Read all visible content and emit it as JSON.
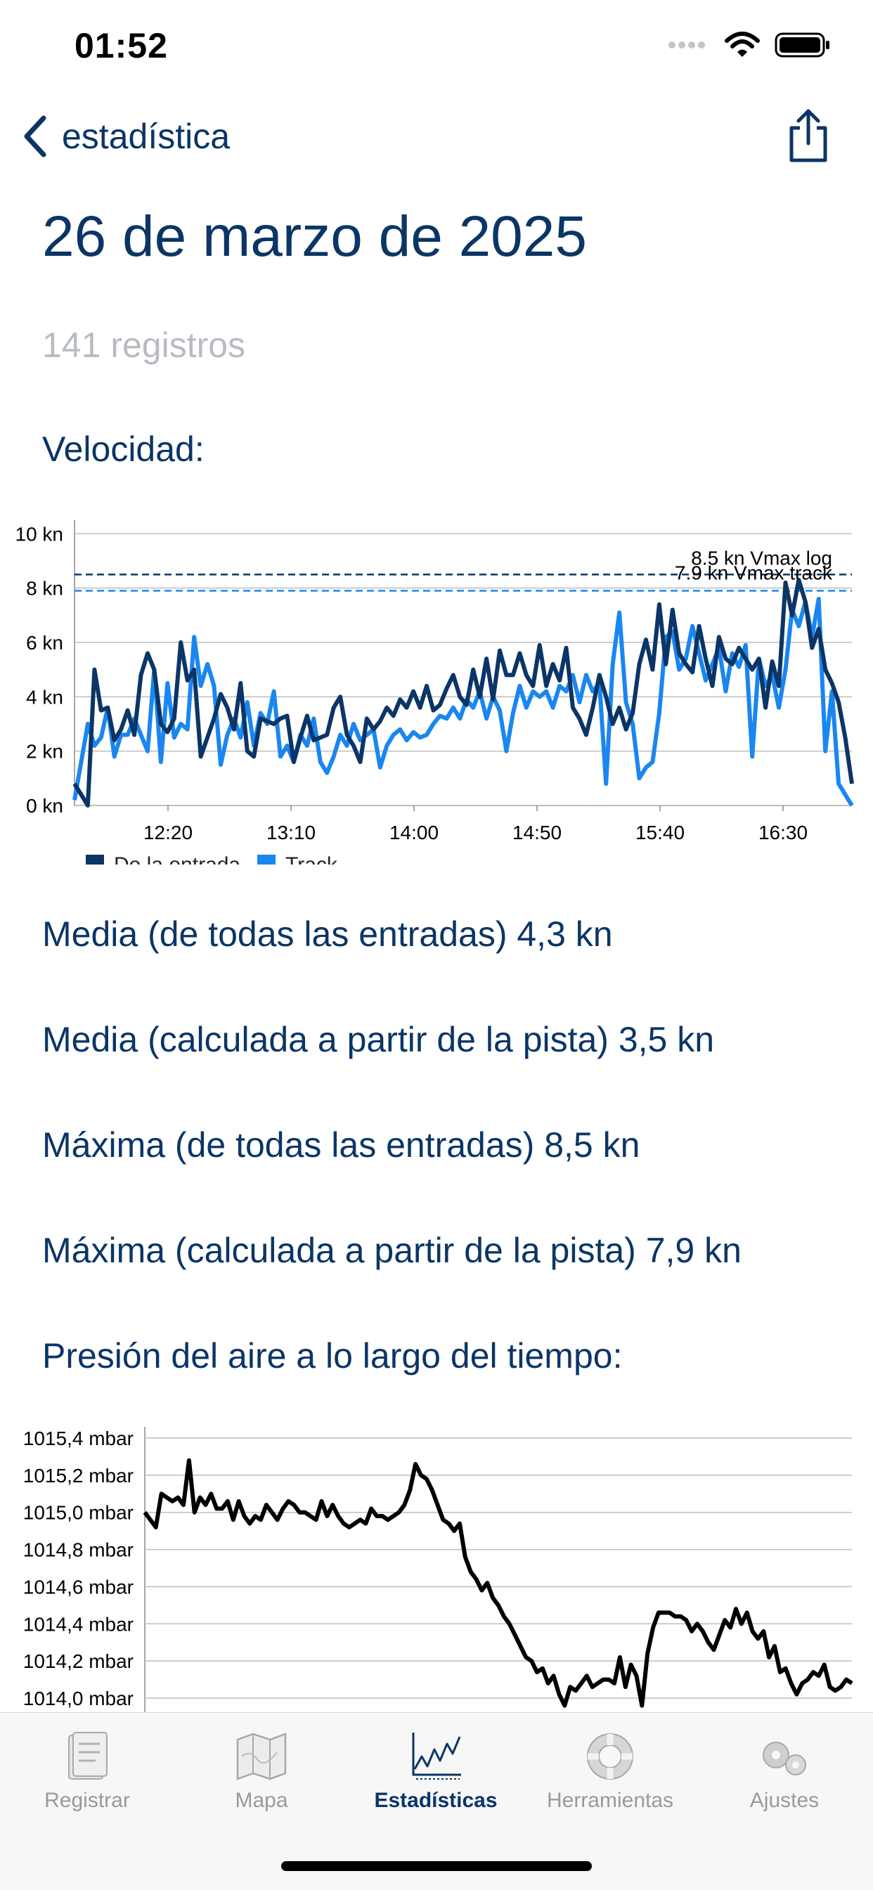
{
  "status_bar": {
    "time": "01:52"
  },
  "nav": {
    "back_label": "estadística"
  },
  "header": {
    "title": "26 de marzo de 2025",
    "record_count": "141 registros"
  },
  "speed_section": {
    "label": "Velocidad:"
  },
  "stats": [
    "Media (de todas las entradas) 4,3 kn",
    "Media (calculada a partir de la pista) 3,5 kn",
    "Máxima (de todas las entradas) 8,5 kn",
    "Máxima (calculada a partir de la pista) 7,9 kn"
  ],
  "pressure_section": {
    "label": "Presión del aire a lo largo del tiempo:"
  },
  "tabbar": {
    "items": [
      {
        "label": "Registrar",
        "icon": "logbook-icon"
      },
      {
        "label": "Mapa",
        "icon": "map-icon"
      },
      {
        "label": "Estadísticas",
        "icon": "statistics-icon",
        "active": true
      },
      {
        "label": "Herramientas",
        "icon": "lifebuoy-icon"
      },
      {
        "label": "Ajustes",
        "icon": "gears-icon"
      }
    ]
  },
  "colors": {
    "primary": "#0b3566",
    "log_series": "#0b3566",
    "track_series": "#1a86f0",
    "inactive_tab": "#9a9a9a"
  },
  "chart_data": [
    {
      "type": "line",
      "title": "",
      "xlabel": "",
      "ylabel": "",
      "x_ticks": [
        "12:20",
        "13:10",
        "14:00",
        "14:50",
        "15:40",
        "16:30"
      ],
      "x_range": [
        "11:42",
        "16:58"
      ],
      "y_ticks": [
        "0 kn",
        "2 kn",
        "4 kn",
        "6 kn",
        "8 kn",
        "10 kn"
      ],
      "ylim": [
        0,
        10.5
      ],
      "grid": true,
      "legend": "bottom-left",
      "reference_lines": [
        {
          "value": 8.5,
          "label": "8,5 kn Vmax log",
          "display_label": "8.5 kn Vmax log"
        },
        {
          "value": 7.9,
          "label": "7,9 kn Vmax track",
          "display_label": "7.9 kn Vmax track"
        }
      ],
      "series": [
        {
          "name": "De la entrada",
          "color": "#0b3566",
          "values": [
            0.8,
            0.4,
            0,
            5,
            3.5,
            3.6,
            2.4,
            2.8,
            3.5,
            2.6,
            4.8,
            5.6,
            5,
            3,
            2.7,
            3.2,
            6,
            4.6,
            5,
            1.8,
            2.5,
            3.2,
            4.1,
            3.6,
            2.8,
            4.5,
            2,
            1.8,
            3.2,
            3.1,
            3,
            3.2,
            3.3,
            1.6,
            2.5,
            3.3,
            2.4,
            2.5,
            2.6,
            3.6,
            4,
            2.6,
            2.2,
            1.6,
            3.2,
            2.8,
            3.1,
            3.6,
            3.3,
            3.9,
            3.6,
            4.2,
            3.6,
            4.4,
            3.5,
            3.7,
            4.3,
            4.8,
            4,
            3.7,
            5,
            4,
            5.4,
            3.9,
            5.7,
            4.8,
            4.8,
            5.6,
            4.8,
            4.4,
            5.9,
            4.4,
            5.2,
            4.6,
            5.8,
            3.6,
            3.2,
            2.6,
            3.6,
            4.8,
            4,
            3,
            3.6,
            2.8,
            3.4,
            5.2,
            6.1,
            5,
            7.4,
            5.2,
            7.2,
            5.6,
            5.2,
            4.9,
            6.6,
            5.4,
            4.4,
            6.2,
            5.4,
            5.2,
            5.8,
            5.4,
            5,
            5.4,
            3.6,
            5.3,
            4.4,
            8.2,
            7,
            8.3,
            7.5,
            5.8,
            6.5,
            5,
            4.5,
            3.8,
            2.5,
            0.8
          ]
        },
        {
          "name": "Track",
          "color": "#1a86f0",
          "values": [
            0.2,
            1.6,
            3,
            2.2,
            2.5,
            3.6,
            1.8,
            2.6,
            2.6,
            3.2,
            2.6,
            2,
            5,
            1.6,
            4.5,
            2.5,
            3,
            2.8,
            6.2,
            4.4,
            5.2,
            4.4,
            1.5,
            2.6,
            3.2,
            2.5,
            3.8,
            2.2,
            3.4,
            3,
            4.2,
            1.8,
            2.2,
            1.6,
            2.6,
            2.2,
            3.2,
            1.6,
            1.2,
            1.8,
            2.6,
            2.2,
            3,
            2.4,
            2.6,
            2.8,
            1.4,
            2.2,
            2.6,
            2.8,
            2.4,
            2.7,
            2.5,
            2.6,
            3,
            3.3,
            3.2,
            3.6,
            3.2,
            3.9,
            3.6,
            4.2,
            3.2,
            4,
            3.5,
            2,
            3.4,
            4.4,
            3.6,
            4.2,
            4,
            4.2,
            3.6,
            4.4,
            4.2,
            4.8,
            3.8,
            4.8,
            4.2,
            4.5,
            0.8,
            5.2,
            7.1,
            3.8,
            3,
            1,
            1.4,
            1.6,
            3.4,
            6.2,
            6.4,
            5,
            5.4,
            6.6,
            5.6,
            4.6,
            5.2,
            5.8,
            4.2,
            5.6,
            5.1,
            5.9,
            1.8,
            5.4,
            4.4,
            4.8,
            3.6,
            5,
            7.2,
            6.6,
            7.5,
            6.2,
            7.6,
            2,
            4.2,
            0.8,
            0.4,
            0
          ]
        }
      ]
    },
    {
      "type": "line",
      "title": "",
      "xlabel": "",
      "ylabel": "",
      "y_ticks": [
        "1014,0 mbar",
        "1014,2 mbar",
        "1014,4 mbar",
        "1014,6 mbar",
        "1014,8 mbar",
        "1015,0 mbar",
        "1015,2 mbar",
        "1015,4 mbar"
      ],
      "ylim": [
        1013.92,
        1015.45
      ],
      "grid": true,
      "series": [
        {
          "name": "",
          "color": "#000000",
          "values": [
            1015.0,
            1014.96,
            1014.92,
            1015.1,
            1015.08,
            1015.06,
            1015.08,
            1015.04,
            1015.28,
            1015.0,
            1015.08,
            1015.04,
            1015.1,
            1015.02,
            1015.02,
            1015.06,
            1014.96,
            1015.06,
            1014.98,
            1014.94,
            1014.98,
            1014.96,
            1015.04,
            1015.0,
            1014.96,
            1015.02,
            1015.06,
            1015.04,
            1015.0,
            1015.0,
            1014.98,
            1014.96,
            1015.06,
            1014.98,
            1015.04,
            1014.98,
            1014.94,
            1014.92,
            1014.94,
            1014.96,
            1014.94,
            1015.02,
            1014.98,
            1014.98,
            1014.96,
            1014.98,
            1015.0,
            1015.04,
            1015.12,
            1015.26,
            1015.2,
            1015.18,
            1015.12,
            1015.04,
            1014.96,
            1014.94,
            1014.9,
            1014.94,
            1014.76,
            1014.68,
            1014.64,
            1014.58,
            1014.62,
            1014.54,
            1014.5,
            1014.44,
            1014.4,
            1014.34,
            1014.28,
            1014.22,
            1014.2,
            1014.14,
            1014.16,
            1014.08,
            1014.12,
            1014.02,
            1013.96,
            1014.06,
            1014.04,
            1014.08,
            1014.12,
            1014.06,
            1014.08,
            1014.1,
            1014.1,
            1014.08,
            1014.22,
            1014.06,
            1014.18,
            1014.12,
            1013.96,
            1014.24,
            1014.38,
            1014.46,
            1014.46,
            1014.46,
            1014.44,
            1014.44,
            1014.42,
            1014.36,
            1014.4,
            1014.36,
            1014.3,
            1014.26,
            1014.34,
            1014.42,
            1014.38,
            1014.48,
            1014.4,
            1014.46,
            1014.36,
            1014.32,
            1014.36,
            1014.22,
            1014.28,
            1014.14,
            1014.16,
            1014.08,
            1014.02,
            1014.08,
            1014.1,
            1014.14,
            1014.12,
            1014.18,
            1014.06,
            1014.04,
            1014.06,
            1014.1,
            1014.08
          ]
        }
      ]
    }
  ]
}
